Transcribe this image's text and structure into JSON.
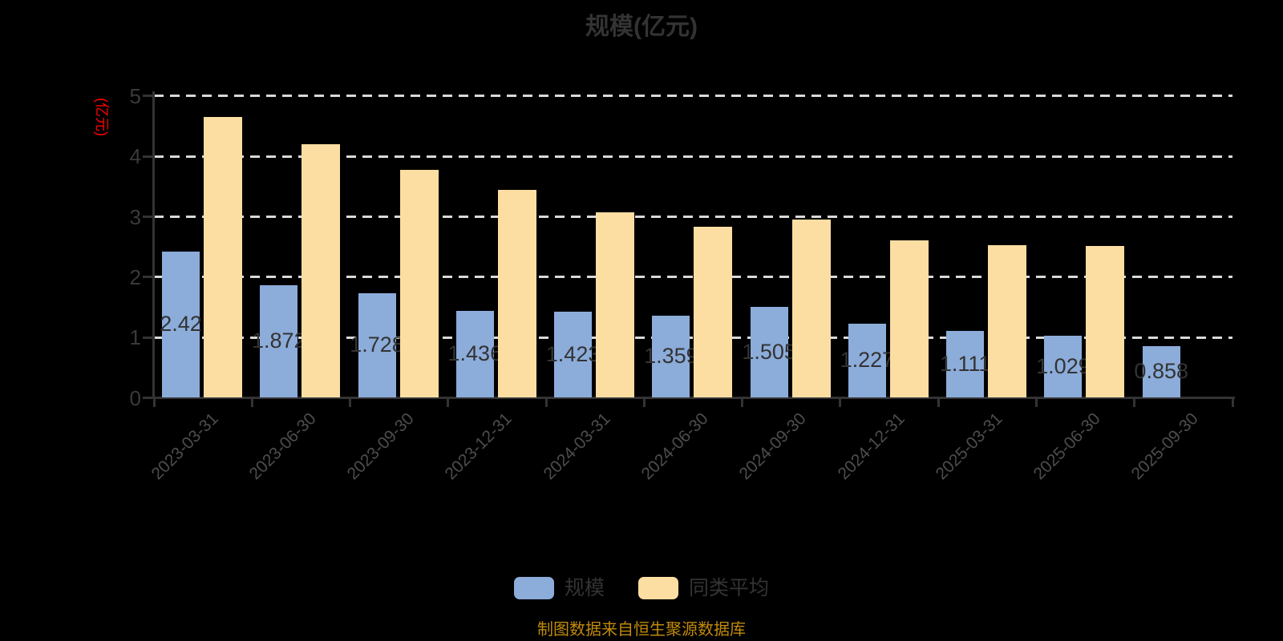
{
  "title": "规模(亿元)",
  "y_axis": {
    "name": "(亿元)",
    "name_color": "#ff0000",
    "ticks": [
      "0",
      "1",
      "2",
      "3",
      "4",
      "5"
    ]
  },
  "legend": [
    {
      "label": "规模",
      "color": "#8cacda"
    },
    {
      "label": "同类平均",
      "color": "#fddea2"
    }
  ],
  "footer": "制图数据来自恒生聚源数据库",
  "colors": {
    "background": "#000000",
    "title_text": "#333333",
    "axis_line": "#333333",
    "gridline": "#d9d9d9",
    "bar_label_text": "#333333",
    "x_label_text": "#4d4d4d",
    "footer_text": "#c08a0c",
    "scale_bar": "#8cacda",
    "average_bar": "#fddea2"
  },
  "chart_data": {
    "type": "bar",
    "title": "规模(亿元)",
    "ylabel": "(亿元)",
    "ylim": [
      0,
      5
    ],
    "grid": true,
    "legend_position": "bottom",
    "categories": [
      "2023-03-31",
      "2023-06-30",
      "2023-09-30",
      "2023-12-31",
      "2024-03-31",
      "2024-06-30",
      "2024-09-30",
      "2024-12-31",
      "2025-03-31",
      "2025-06-30",
      "2025-09-30"
    ],
    "series": [
      {
        "name": "规模",
        "color": "#8cacda",
        "values": [
          2.42,
          1.872,
          1.728,
          1.436,
          1.423,
          1.359,
          1.505,
          1.227,
          1.111,
          1.029,
          0.858
        ],
        "labels": [
          "2.42",
          "1.872",
          "1.728",
          "1.436",
          "1.423",
          "1.359",
          "1.505",
          "1.227",
          "1.111",
          "1.029",
          "0.858"
        ]
      },
      {
        "name": "同类平均",
        "color": "#fddea2",
        "values": [
          4.66,
          4.2,
          3.78,
          3.45,
          3.08,
          2.84,
          2.96,
          2.61,
          2.53,
          2.51,
          null
        ]
      }
    ]
  }
}
